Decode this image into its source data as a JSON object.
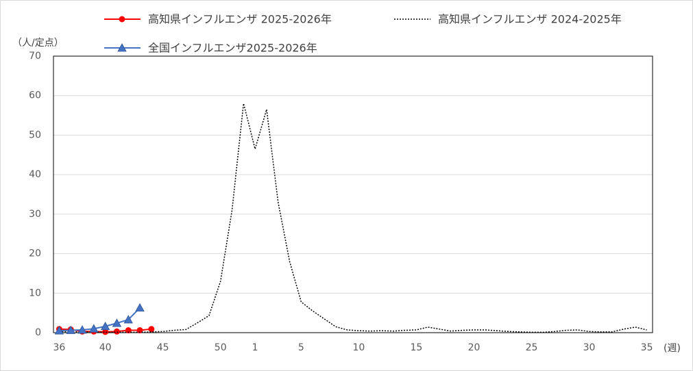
{
  "chart_data": {
    "type": "line",
    "y_unit_label": "（人/定点）",
    "x_unit_label": "(週)",
    "categories": [
      36,
      null,
      null,
      null,
      40,
      null,
      null,
      null,
      null,
      45,
      null,
      null,
      null,
      null,
      50,
      null,
      null,
      1,
      null,
      null,
      null,
      5,
      null,
      null,
      null,
      null,
      10,
      null,
      null,
      null,
      null,
      15,
      null,
      null,
      null,
      null,
      20,
      null,
      null,
      null,
      null,
      25,
      null,
      null,
      null,
      null,
      30,
      null,
      null,
      null,
      null,
      35
    ],
    "series": [
      {
        "name": "高知県インフルエンザ 2025-2026年",
        "color": "#ff0000",
        "line_style": "solid",
        "marker": "circle",
        "values": [
          0.9,
          0.8,
          0.3,
          0.3,
          0.2,
          0.3,
          0.6,
          0.6,
          0.9,
          null,
          null,
          null,
          null,
          null,
          null,
          null,
          null,
          null,
          null,
          null,
          null,
          null,
          null,
          null,
          null,
          null,
          null,
          null,
          null,
          null,
          null,
          null,
          null,
          null,
          null,
          null,
          null,
          null,
          null,
          null,
          null,
          null,
          null,
          null,
          null,
          null,
          null,
          null,
          null,
          null,
          null,
          null
        ]
      },
      {
        "name": "高知県インフルエンザ 2024-2025年",
        "color": "#000000",
        "line_style": "dotted",
        "marker": "none",
        "values": [
          0.3,
          0.2,
          0.2,
          0.2,
          0.1,
          0.1,
          0.1,
          0.1,
          0.2,
          0.3,
          0.6,
          0.8,
          2.5,
          4.3,
          13,
          31,
          58,
          46.5,
          56.5,
          33,
          18,
          7.8,
          5.5,
          3.5,
          1.5,
          0.7,
          0.5,
          0.4,
          0.5,
          0.4,
          0.6,
          0.7,
          1.4,
          0.9,
          0.4,
          0.6,
          0.7,
          0.7,
          0.5,
          0.3,
          0.2,
          0.1,
          0.1,
          0.3,
          0.6,
          0.7,
          0.3,
          0.2,
          0.2,
          0.9,
          1.4,
          0.7
        ]
      },
      {
        "name": "全国インフルエンザ2025-2026年",
        "color": "#4472c4",
        "line_style": "solid",
        "marker": "triangle",
        "values": [
          0.5,
          0.6,
          0.7,
          1.0,
          1.6,
          2.4,
          3.3,
          6.3,
          null,
          null,
          null,
          null,
          null,
          null,
          null,
          null,
          null,
          null,
          null,
          null,
          null,
          null,
          null,
          null,
          null,
          null,
          null,
          null,
          null,
          null,
          null,
          null,
          null,
          null,
          null,
          null,
          null,
          null,
          null,
          null,
          null,
          null,
          null,
          null,
          null,
          null,
          null,
          null,
          null,
          null,
          null,
          null
        ]
      }
    ],
    "ylim": [
      0,
      70
    ],
    "yticks": [
      0,
      10,
      20,
      30,
      40,
      50,
      60,
      70
    ],
    "grid": true
  }
}
